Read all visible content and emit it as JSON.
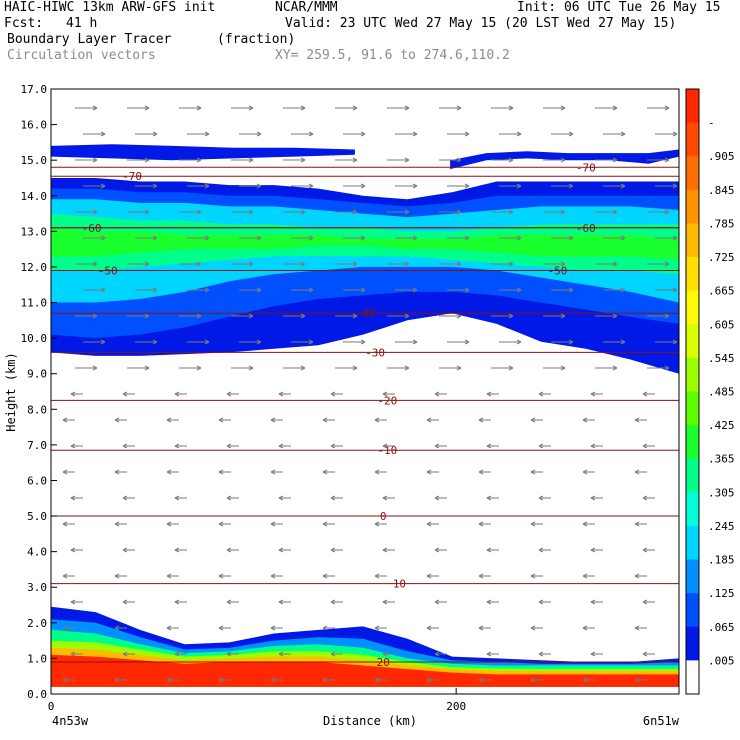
{
  "header": {
    "model": "HAIC-HIWC 13km ARW-GFS init",
    "center": "NCAR/MMM",
    "init": "Init: 06 UTC Tue 26 May 15",
    "fcst_label": "Fcst:",
    "fcst_value": "41 h",
    "valid": "Valid: 23 UTC Wed 27 May 15 (20 LST Wed 27 May 15)",
    "field": "Boundary Layer Tracer",
    "units": "(fraction)",
    "vectors": "Circulation vectors",
    "xy": "XY= 259.5, 91.6 to 274.6,110.2"
  },
  "chart_data": {
    "type": "heatmap",
    "ylabel": "Height (km)",
    "xlabel": "Distance (km)",
    "ylim": [
      0,
      17
    ],
    "xlim": [
      0,
      310
    ],
    "yticks": [
      "0.0",
      "1.0",
      "2.0",
      "3.0",
      "4.0",
      "5.0",
      "6.0",
      "7.0",
      "8.0",
      "9.0",
      "10.0",
      "11.0",
      "12.0",
      "13.0",
      "14.0",
      "15.0",
      "16.0",
      "17.0"
    ],
    "xticks": [
      {
        "value": 0,
        "label": "0"
      },
      {
        "value": 200,
        "label": "200"
      }
    ],
    "x_endpoints": {
      "left": "4n53w",
      "right": "6n51w"
    },
    "colorbar": {
      "labels": [
        "-",
        ".905",
        ".845",
        ".785",
        ".725",
        ".665",
        ".605",
        ".545",
        ".485",
        ".425",
        ".365",
        ".305",
        ".245",
        ".185",
        ".125",
        ".065",
        ".005"
      ],
      "colors": [
        "#ff2800",
        "#ff4a00",
        "#ff6e00",
        "#ff9400",
        "#ffbb00",
        "#ffde00",
        "#fffb00",
        "#d9ff00",
        "#9bff00",
        "#5cff00",
        "#1aff2e",
        "#00ff8a",
        "#00ffd9",
        "#00d5ff",
        "#0090ff",
        "#0050ff",
        "#0019e6",
        "#ffffff"
      ]
    },
    "temperature_contours": [
      {
        "label": "-70",
        "y": 14.55,
        "label_x": 40
      },
      {
        "label": "-70",
        "y": 14.8,
        "label_x": 264
      },
      {
        "label": "-60",
        "y": 13.1,
        "label_x": 20
      },
      {
        "label": "-60",
        "y": 13.1,
        "label_x": 264
      },
      {
        "label": "-50",
        "y": 11.9,
        "label_x": 28
      },
      {
        "label": "-50",
        "y": 11.9,
        "label_x": 250
      },
      {
        "label": "-40",
        "y": 10.7,
        "label_x": 155
      },
      {
        "label": "-30",
        "y": 9.6,
        "label_x": 160
      },
      {
        "label": "-20",
        "y": 8.25,
        "label_x": 166
      },
      {
        "label": "-10",
        "y": 6.85,
        "label_x": 166
      },
      {
        "label": "0",
        "y": 5.0,
        "label_x": 164
      },
      {
        "label": "10",
        "y": 3.1,
        "label_x": 172
      },
      {
        "label": "20",
        "y": 0.9,
        "label_x": 164
      }
    ],
    "tracer_layers": [
      {
        "name": "upper_outflow",
        "color_index": 16,
        "y_bottom": [
          9.6,
          9.5,
          9.5,
          9.55,
          9.6,
          9.7,
          9.8,
          10.1,
          10.5,
          10.7,
          10.4,
          9.9,
          9.7,
          9.4,
          9.0
        ],
        "y_top": [
          14.5,
          14.5,
          14.4,
          14.4,
          14.3,
          14.3,
          14.2,
          14.0,
          13.9,
          14.1,
          14.4,
          14.4,
          14.4,
          14.4,
          14.4
        ]
      },
      {
        "name": "upper_core_1",
        "color_index": 15,
        "y_bottom": [
          10.1,
          10.0,
          10.1,
          10.3,
          10.6,
          10.9,
          11.1,
          11.2,
          11.3,
          11.3,
          11.2,
          11.0,
          10.8,
          10.6,
          10.4
        ],
        "y_top": [
          14.2,
          14.2,
          14.1,
          14.1,
          14.0,
          14.0,
          13.9,
          13.8,
          13.7,
          13.8,
          14.0,
          14.0,
          14.0,
          14.0,
          14.0
        ]
      },
      {
        "name": "upper_core_2",
        "color_index": 13,
        "y_bottom": [
          11.0,
          11.0,
          11.1,
          11.3,
          11.6,
          11.8,
          11.9,
          12.0,
          12.0,
          12.0,
          11.9,
          11.7,
          11.5,
          11.3,
          11.0
        ],
        "y_top": [
          13.9,
          13.9,
          13.8,
          13.8,
          13.7,
          13.7,
          13.6,
          13.5,
          13.4,
          13.5,
          13.6,
          13.7,
          13.7,
          13.7,
          13.6
        ]
      },
      {
        "name": "upper_core_3",
        "color_index": 11,
        "y_bottom": [
          11.9,
          11.9,
          12.0,
          12.1,
          12.2,
          12.3,
          12.3,
          12.3,
          12.3,
          12.2,
          12.1,
          12.0,
          11.9,
          11.9,
          11.8
        ],
        "y_top": [
          13.5,
          13.4,
          13.3,
          13.3,
          13.2,
          13.2,
          13.1,
          13.1,
          13.0,
          13.0,
          13.1,
          13.2,
          13.2,
          13.2,
          13.2
        ]
      },
      {
        "name": "upper_core_4",
        "color_index": 10,
        "y_bottom": [
          12.3,
          12.3,
          12.4,
          12.5,
          12.5,
          12.5,
          12.6,
          12.6,
          12.5,
          12.5,
          12.4,
          12.3,
          12.3,
          12.3,
          12.2
        ],
        "y_top": [
          13.1,
          13.0,
          13.0,
          12.9,
          12.9,
          12.9,
          12.9,
          12.8,
          12.8,
          12.8,
          12.9,
          12.9,
          12.9,
          12.9,
          12.8
        ]
      },
      {
        "name": "pbl_1",
        "color_index": 16,
        "y_bottom": [
          0.2,
          0.2,
          0.2,
          0.2,
          0.2,
          0.2,
          0.2,
          0.2,
          0.2,
          0.2,
          0.2,
          0.2,
          0.2,
          0.2,
          0.2
        ],
        "y_top": [
          2.45,
          2.3,
          1.8,
          1.4,
          1.45,
          1.7,
          1.8,
          1.9,
          1.55,
          1.05,
          1.0,
          0.95,
          0.9,
          0.9,
          1.0
        ]
      },
      {
        "name": "pbl_2",
        "color_index": 14,
        "y_bottom": [
          0.2,
          0.2,
          0.2,
          0.2,
          0.2,
          0.2,
          0.2,
          0.2,
          0.2,
          0.2,
          0.2,
          0.2,
          0.2,
          0.2,
          0.2
        ],
        "y_top": [
          2.1,
          2.0,
          1.6,
          1.25,
          1.3,
          1.5,
          1.6,
          1.55,
          1.2,
          0.95,
          0.9,
          0.85,
          0.85,
          0.85,
          0.9
        ]
      },
      {
        "name": "pbl_3",
        "color_index": 11,
        "y_bottom": [
          0.2,
          0.2,
          0.2,
          0.2,
          0.2,
          0.2,
          0.2,
          0.2,
          0.2,
          0.2,
          0.2,
          0.2,
          0.2,
          0.2,
          0.2
        ],
        "y_top": [
          1.8,
          1.7,
          1.4,
          1.15,
          1.2,
          1.35,
          1.4,
          1.3,
          1.0,
          0.85,
          0.8,
          0.8,
          0.8,
          0.8,
          0.8
        ]
      },
      {
        "name": "pbl_4",
        "color_index": 8,
        "y_bottom": [
          0.2,
          0.2,
          0.2,
          0.2,
          0.2,
          0.2,
          0.2,
          0.2,
          0.2,
          0.2,
          0.2,
          0.2,
          0.2,
          0.2,
          0.2
        ],
        "y_top": [
          1.5,
          1.45,
          1.25,
          1.05,
          1.1,
          1.2,
          1.2,
          1.1,
          0.9,
          0.75,
          0.72,
          0.7,
          0.7,
          0.7,
          0.7
        ]
      },
      {
        "name": "pbl_5",
        "color_index": 4,
        "y_bottom": [
          0.2,
          0.2,
          0.2,
          0.2,
          0.2,
          0.2,
          0.2,
          0.2,
          0.2,
          0.2,
          0.2,
          0.2,
          0.2,
          0.2,
          0.2
        ],
        "y_top": [
          1.3,
          1.25,
          1.1,
          0.95,
          1.0,
          1.05,
          1.05,
          0.95,
          0.8,
          0.7,
          0.65,
          0.65,
          0.65,
          0.65,
          0.65
        ]
      },
      {
        "name": "pbl_core",
        "color_index": 0,
        "y_bottom": [
          0.2,
          0.2,
          0.2,
          0.2,
          0.2,
          0.2,
          0.2,
          0.2,
          0.2,
          0.2,
          0.2,
          0.2,
          0.2,
          0.2,
          0.2
        ],
        "y_top": [
          1.1,
          1.05,
          0.95,
          0.85,
          0.9,
          0.9,
          0.9,
          0.8,
          0.7,
          0.6,
          0.55,
          0.55,
          0.55,
          0.55,
          0.55
        ]
      }
    ],
    "tracer_x": [
      0,
      22,
      44,
      66,
      88,
      110,
      132,
      154,
      176,
      198,
      220,
      242,
      264,
      286,
      310
    ],
    "upper_islands": [
      {
        "color_index": 16,
        "x": [
          0,
          30,
          60,
          90,
          120,
          150
        ],
        "y_bottom": [
          15.1,
          15.05,
          15.0,
          15.05,
          15.1,
          15.15
        ],
        "y_top": [
          15.4,
          15.45,
          15.4,
          15.35,
          15.35,
          15.3
        ]
      },
      {
        "color_index": 16,
        "x": [
          197,
          215,
          235,
          255,
          275,
          295,
          310
        ],
        "y_bottom": [
          14.75,
          15.0,
          15.05,
          15.0,
          15.0,
          14.9,
          15.1
        ],
        "y_top": [
          15.0,
          15.2,
          15.25,
          15.2,
          15.2,
          15.2,
          15.3
        ]
      }
    ]
  }
}
